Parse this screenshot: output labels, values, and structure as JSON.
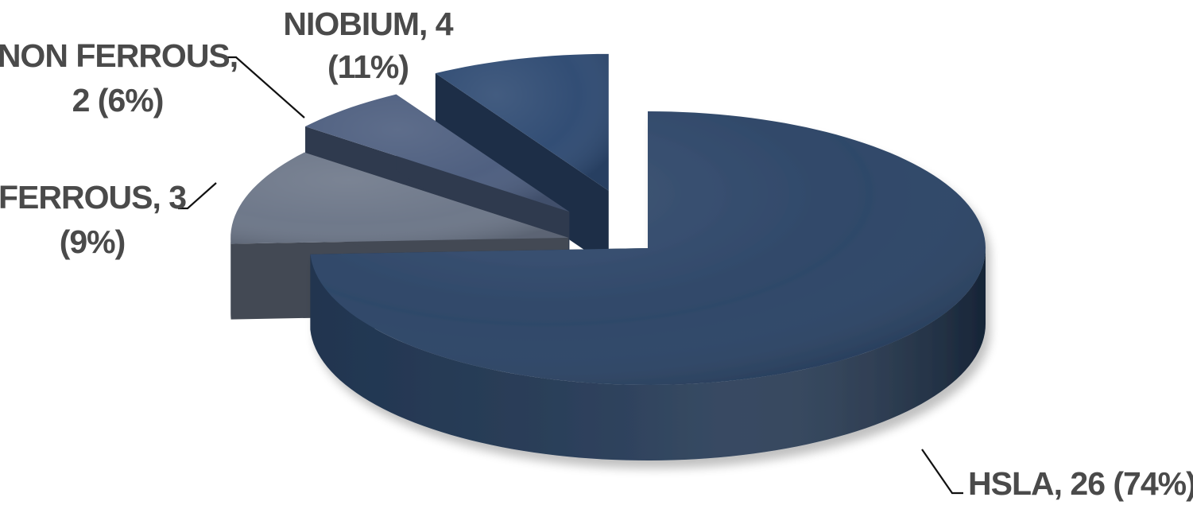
{
  "chart_data": {
    "type": "pie",
    "style": "3d-exploded",
    "title": "",
    "legend": "none",
    "slices": [
      {
        "category": "HSLA",
        "value": 26,
        "percent": "74%",
        "label_line1": "HSLA, 26 (74%)",
        "label_line2": "",
        "color": "#2b4466"
      },
      {
        "category": "NIOBIUM",
        "value": 4,
        "percent": "11%",
        "label_line1": "NIOBIUM, 4",
        "label_line2": "(11%)",
        "color": "#6c7688"
      },
      {
        "category": "NON FERROUS",
        "value": 2,
        "percent": "6%",
        "label_line1": "NON FERROUS,",
        "label_line2": "2 (6%)",
        "color": "#4c5d7e"
      },
      {
        "category": "FERROUS",
        "value": 3,
        "percent": "9%",
        "label_line1": "FERROUS, 3",
        "label_line2": "(9%)",
        "color": "#2e4a72"
      }
    ]
  }
}
